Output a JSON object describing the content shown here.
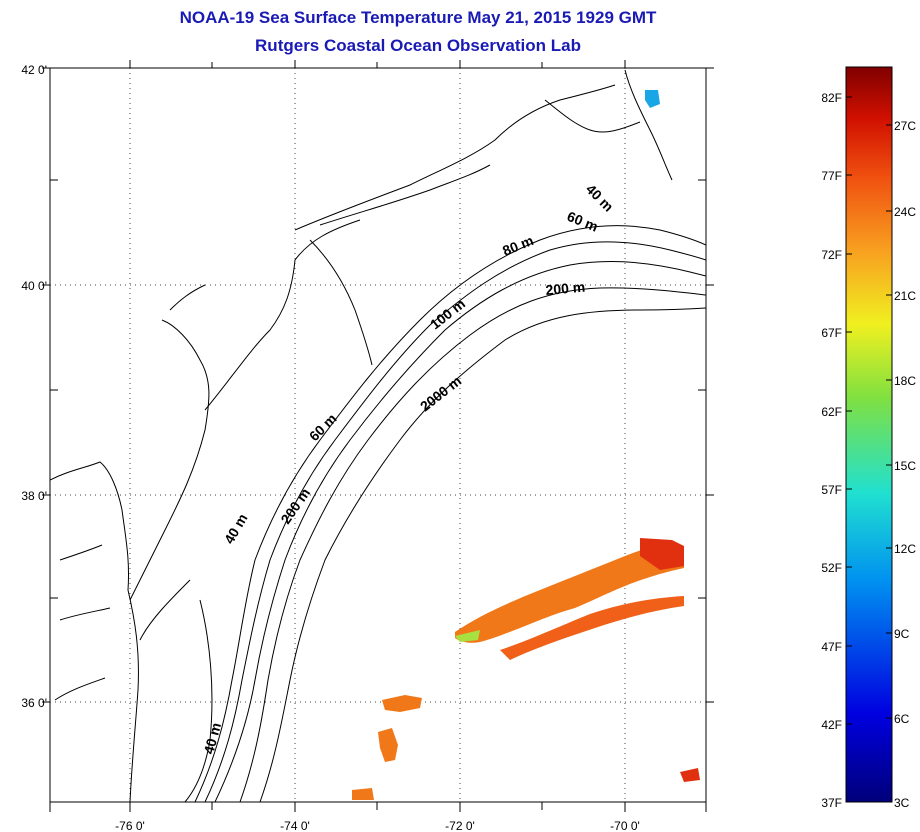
{
  "title_line1": "NOAA-19 Sea Surface Temperature May 21, 2015 1929 GMT",
  "title_line2": "Rutgers Coastal Ocean Observation Lab",
  "map": {
    "lat_labels": [
      "42 0'",
      "40 0'",
      "38 0'",
      "36 0'"
    ],
    "lon_labels": [
      "-76 0'",
      "-74 0'",
      "-72 0'",
      "-70 0'"
    ],
    "bathymetry_labels": [
      "40 m",
      "60 m",
      "80 m",
      "200 m",
      "100 m",
      "2000 m",
      "60 m",
      "40 m",
      "200 m",
      "40 m"
    ],
    "gridlines": "dotted"
  },
  "colorbar": {
    "fahrenheit_labels": [
      "82F",
      "77F",
      "72F",
      "67F",
      "62F",
      "57F",
      "52F",
      "47F",
      "42F",
      "37F"
    ],
    "celsius_labels": [
      "27C",
      "24C",
      "21C",
      "18C",
      "15C",
      "12C",
      "9C",
      "6C",
      "3C"
    ]
  },
  "colors": {
    "title": "#1a1ab4",
    "sst_warm": "#f07818",
    "sst_hot": "#e03010",
    "sst_cold": "#19a6e6"
  }
}
